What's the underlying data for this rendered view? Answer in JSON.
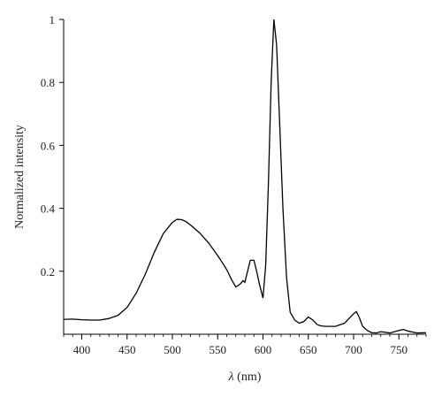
{
  "chart_data": {
    "type": "line",
    "title": "",
    "xlabel_symbol": "λ",
    "xlabel_unit": " (nm)",
    "ylabel": "Normalized intensity",
    "xlim": [
      380,
      780
    ],
    "ylim": [
      0,
      1.0
    ],
    "x_ticks": [
      400,
      450,
      500,
      550,
      600,
      650,
      700,
      750
    ],
    "y_ticks": [
      0.2,
      0.4,
      0.6,
      0.8,
      1
    ],
    "y_tick_labels": [
      "0.2",
      "0.4",
      "0.6",
      "0.8",
      "1"
    ],
    "x_tick_labels": [
      "400",
      "450",
      "500",
      "550",
      "600",
      "650",
      "700",
      "750"
    ],
    "x_minor_step": 10,
    "grid": false,
    "series": [
      {
        "x": [
          380,
          390,
          400,
          410,
          420,
          430,
          440,
          450,
          460,
          470,
          480,
          490,
          500,
          505,
          510,
          515,
          520,
          530,
          540,
          550,
          555,
          560,
          565,
          570,
          575,
          578,
          580,
          583,
          586,
          590,
          593,
          596,
          600,
          603,
          606,
          609,
          612,
          615,
          618,
          622,
          626,
          630,
          635,
          640,
          645,
          650,
          655,
          660,
          665,
          670,
          680,
          690,
          695,
          700,
          703,
          706,
          710,
          715,
          720,
          725,
          730,
          740,
          750,
          755,
          760,
          770,
          780
        ],
        "y": [
          0.047,
          0.048,
          0.046,
          0.045,
          0.045,
          0.05,
          0.06,
          0.085,
          0.13,
          0.19,
          0.26,
          0.32,
          0.355,
          0.365,
          0.364,
          0.358,
          0.347,
          0.322,
          0.29,
          0.25,
          0.228,
          0.205,
          0.175,
          0.15,
          0.16,
          0.17,
          0.165,
          0.2,
          0.235,
          0.235,
          0.2,
          0.16,
          0.115,
          0.22,
          0.48,
          0.8,
          1.0,
          0.92,
          0.7,
          0.4,
          0.18,
          0.07,
          0.045,
          0.035,
          0.04,
          0.055,
          0.045,
          0.03,
          0.026,
          0.025,
          0.025,
          0.035,
          0.05,
          0.065,
          0.072,
          0.055,
          0.025,
          0.012,
          0.005,
          0.004,
          0.008,
          0.004,
          0.012,
          0.015,
          0.01,
          0.004,
          0.005
        ]
      }
    ]
  }
}
